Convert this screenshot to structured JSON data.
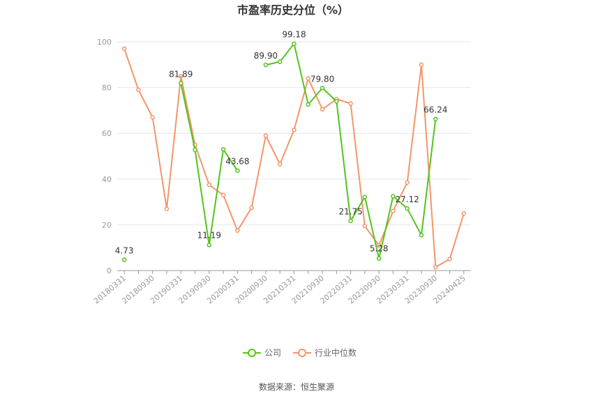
{
  "chart_data": {
    "type": "line",
    "title": "市盈率历史分位（%）",
    "source": "数据来源：恒生聚源",
    "ylim": [
      0,
      100
    ],
    "y_ticks": [
      0,
      20,
      40,
      60,
      80,
      100
    ],
    "grid": true,
    "legend_position": "bottom-center",
    "x_tick_labels": [
      "20180331",
      "20180930",
      "20190331",
      "20190930",
      "20200331",
      "20200930",
      "20210331",
      "20210930",
      "20220331",
      "20220930",
      "20230331",
      "20230930",
      "20240425"
    ],
    "x": [
      "20180331",
      "20180630",
      "20180930",
      "20181231",
      "20190331",
      "20190630",
      "20190930",
      "20191231",
      "20200331",
      "20200630",
      "20200930",
      "20201231",
      "20210331",
      "20210630",
      "20210930",
      "20211231",
      "20220331",
      "20220630",
      "20220930",
      "20221231",
      "20230331",
      "20230630",
      "20230930",
      "20231231",
      "20240425"
    ],
    "series": [
      {
        "name": "公司",
        "color": "#52c41a",
        "values": [
          4.73,
          null,
          null,
          null,
          81.89,
          52.8,
          11.19,
          53.0,
          43.68,
          null,
          89.9,
          91.3,
          99.18,
          72.6,
          79.8,
          74.0,
          21.75,
          32.2,
          5.28,
          32.5,
          27.12,
          15.5,
          66.24,
          null,
          null
        ],
        "labels": {
          "0": "4.73",
          "4": "81.89",
          "6": "11.19",
          "8": "43.68",
          "10": "89.90",
          "12": "99.18",
          "14": "79.80",
          "16": "21.75",
          "18": "5.28",
          "20": "27.12",
          "22": "66.24"
        }
      },
      {
        "name": "行业中位数",
        "color": "#f4956a",
        "values": [
          97.0,
          79.0,
          67.0,
          27.0,
          85.0,
          55.0,
          37.5,
          33.0,
          17.5,
          27.5,
          59.0,
          46.5,
          61.5,
          84.0,
          70.5,
          75.0,
          73.0,
          19.5,
          11.0,
          26.0,
          38.5,
          90.0,
          1.5,
          5.0,
          25.0
        ]
      }
    ]
  }
}
